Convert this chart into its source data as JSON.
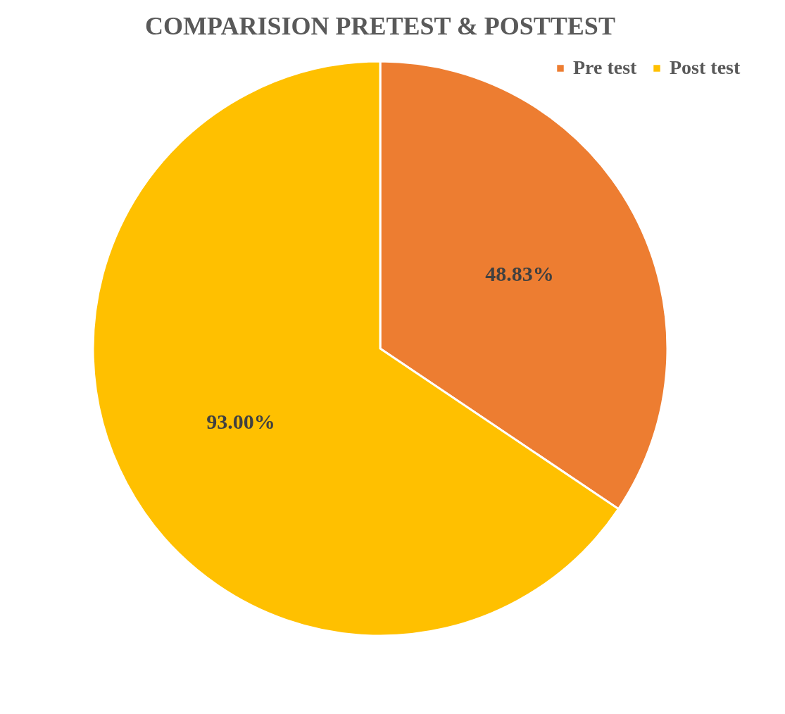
{
  "chart_data": {
    "type": "pie",
    "title": "COMPARISION PRETEST & POSTTEST",
    "categories": [
      "Pre test",
      "Post test"
    ],
    "values": [
      48.83,
      93.0
    ],
    "value_labels": [
      "48.83%",
      "93.00%"
    ],
    "colors": [
      "#ed7d31",
      "#ffc000"
    ],
    "legend": "top right"
  }
}
